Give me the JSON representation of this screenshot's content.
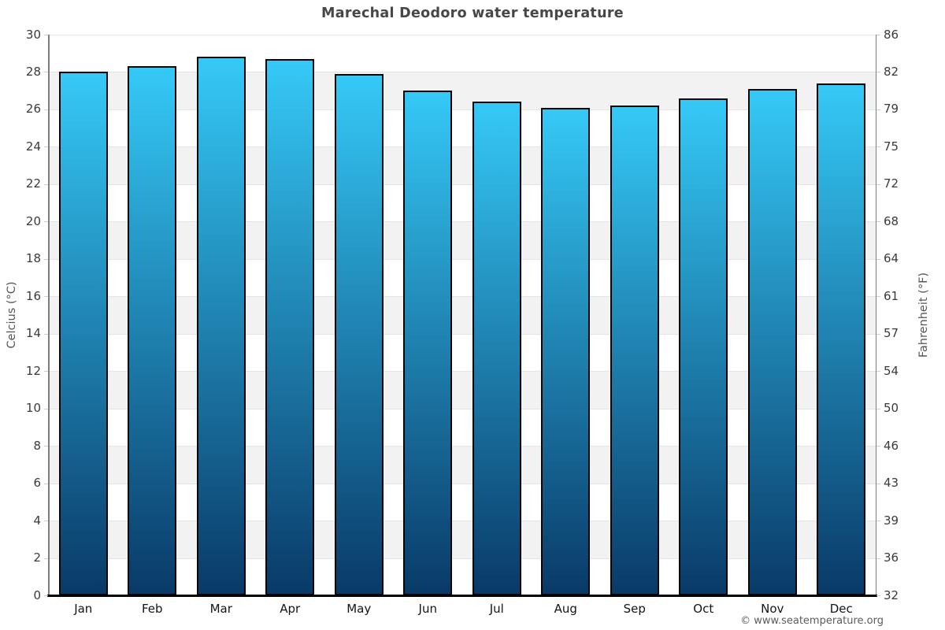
{
  "chart_data": {
    "type": "bar",
    "title": "Marechal Deodoro water temperature",
    "categories": [
      "Jan",
      "Feb",
      "Mar",
      "Apr",
      "May",
      "Jun",
      "Jul",
      "Aug",
      "Sep",
      "Oct",
      "Nov",
      "Dec"
    ],
    "values": [
      28.0,
      28.3,
      28.8,
      28.7,
      27.9,
      27.0,
      26.4,
      26.1,
      26.2,
      26.6,
      27.1,
      27.4
    ],
    "unit": "°C",
    "ylabel_left": "Celcius (°C)",
    "ylabel_right": "Fahrenheit (°F)",
    "ylim_celsius": [
      0,
      30
    ],
    "ytick_step_celsius": 2,
    "left_tick_labels_top_to_bottom": [
      "30",
      "28",
      "26",
      "24",
      "22",
      "20",
      "18",
      "16",
      "14",
      "12",
      "10",
      "8",
      "6",
      "4",
      "2",
      "0"
    ],
    "right_tick_labels_top_to_bottom": [
      "86",
      "82",
      "79",
      "75",
      "72",
      "68",
      "64",
      "61",
      "57",
      "54",
      "50",
      "46",
      "43",
      "39",
      "36",
      "32"
    ],
    "legend": "none",
    "grid": "alternating horizontal bands every 2°C",
    "colors": {
      "bar_gradient_top": "#35c9f7",
      "bar_gradient_bottom": "#093a68",
      "bar_border": "#050505",
      "band_gray": "#f2f2f2",
      "gridline": "#e4e4e4",
      "axis_line": "#7d7d7d",
      "baseline": "#000000",
      "title_text": "#474747",
      "tick_text": "#3a3a3a",
      "month_text": "#141414"
    }
  },
  "footer": {
    "copyright": "© www.seatemperature.org"
  }
}
